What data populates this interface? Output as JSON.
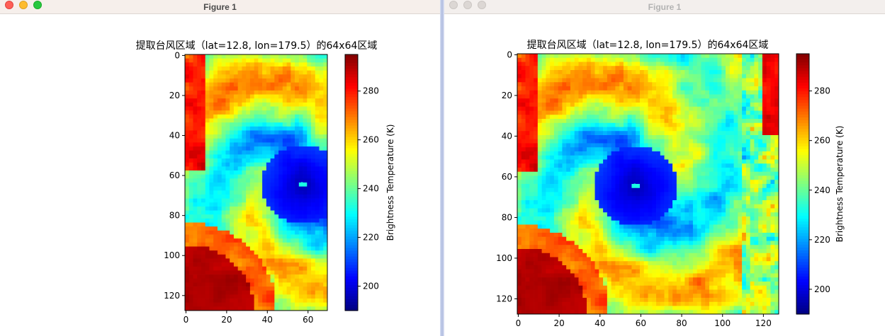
{
  "windows": [
    {
      "title": "Figure 1",
      "plot_title": "提取台风区域（lat=12.8, lon=179.5）的64x64区域",
      "colorbar_label": "Brightness Temperature (K)"
    },
    {
      "title": "Figure 1",
      "plot_title": "提取台风区域（lat=12.8, lon=179.5）的64x64区域",
      "colorbar_label": "Brightness Temperature (K)"
    }
  ],
  "chart_data": [
    {
      "type": "heatmap",
      "title": "提取台风区域（lat=12.8, lon=179.5）的64x64区域",
      "x_ticks": [
        "0",
        "20",
        "40",
        "60"
      ],
      "y_ticks": [
        "0",
        "20",
        "40",
        "60",
        "80",
        "100",
        "120"
      ],
      "xlim": [
        0,
        70
      ],
      "ylim": [
        127,
        0
      ],
      "colorbar": {
        "label": "Brightness Temperature (K)",
        "ticks": [
          "200",
          "220",
          "240",
          "260",
          "280"
        ],
        "range": [
          190,
          295
        ],
        "colormap": "jet"
      },
      "eye_center": [
        57,
        64
      ]
    },
    {
      "type": "heatmap",
      "title": "提取台风区域（lat=12.8, lon=179.5）的64x64区域",
      "x_ticks": [
        "0",
        "20",
        "40",
        "60",
        "80",
        "100",
        "120"
      ],
      "y_ticks": [
        "0",
        "20",
        "40",
        "60",
        "80",
        "100",
        "120"
      ],
      "xlim": [
        0,
        128
      ],
      "ylim": [
        127,
        0
      ],
      "colorbar": {
        "label": "Brightness Temperature (K)",
        "ticks": [
          "200",
          "220",
          "240",
          "260",
          "280"
        ],
        "range": [
          190,
          295
        ],
        "colormap": "jet"
      },
      "eye_center": [
        57,
        64
      ]
    }
  ]
}
